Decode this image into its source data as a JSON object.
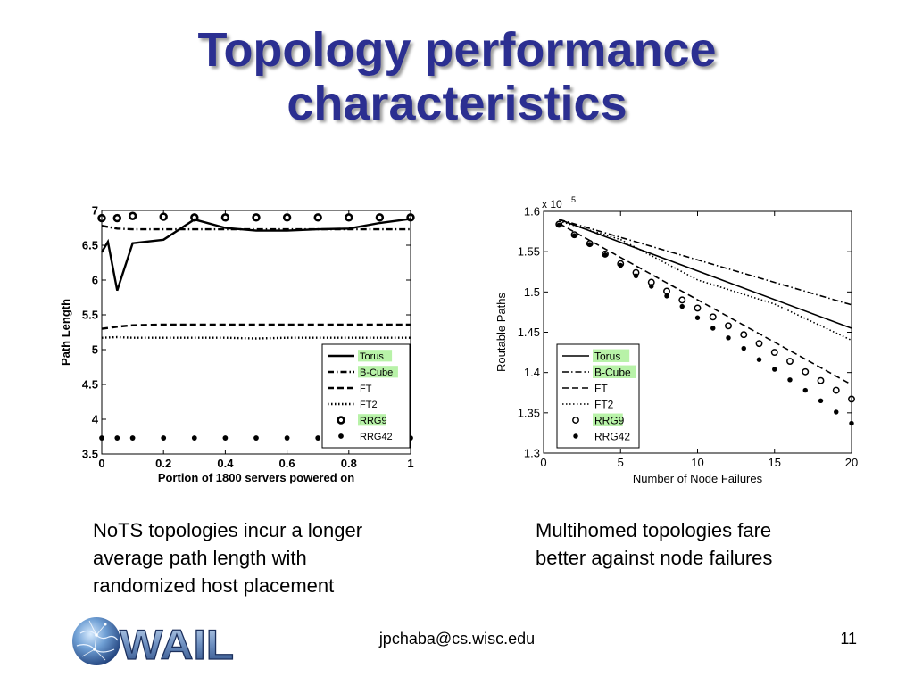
{
  "slide": {
    "title_lines": [
      "Topology performance",
      "characteristics"
    ],
    "caption_left_lines": [
      "NoTS topologies incur a longer",
      "average path length with",
      "randomized host placement"
    ],
    "caption_right_lines": [
      "Multihomed topologies fare",
      "better against node failures"
    ],
    "footer_email": "jpchaba@cs.wisc.edu",
    "page_number": "11",
    "logo_text": "WAIL",
    "logo_icon": "globe-icon",
    "title_color": "#2b2f91"
  },
  "chart_data": [
    {
      "type": "line",
      "title": "",
      "xlabel": "Portion of 1800 servers powered on",
      "ylabel": "Path Length",
      "xlim": [
        0,
        1
      ],
      "ylim": [
        3.5,
        7
      ],
      "xticks": [
        "0",
        "0.2",
        "0.4",
        "0.6",
        "0.8",
        "1"
      ],
      "yticks": [
        "3.5",
        "4",
        "4.5",
        "5",
        "5.5",
        "6",
        "6.5",
        "7"
      ],
      "grid": false,
      "legend_position": "bottom-right",
      "series": [
        {
          "name": "Torus",
          "style": "solid",
          "highlight": true,
          "x": [
            0,
            0.02,
            0.05,
            0.1,
            0.2,
            0.3,
            0.4,
            0.5,
            0.6,
            0.7,
            0.8,
            0.9,
            1.0
          ],
          "y": [
            6.4,
            6.55,
            5.85,
            6.53,
            6.58,
            6.87,
            6.75,
            6.71,
            6.71,
            6.73,
            6.74,
            6.82,
            6.88
          ]
        },
        {
          "name": "B-Cube",
          "style": "dashdot",
          "highlight": true,
          "x": [
            0,
            0.05,
            0.1,
            0.2,
            0.4,
            0.6,
            0.8,
            1.0
          ],
          "y": [
            6.78,
            6.74,
            6.73,
            6.73,
            6.73,
            6.73,
            6.73,
            6.73
          ]
        },
        {
          "name": "FT",
          "style": "dashed",
          "highlight": false,
          "x": [
            0,
            0.05,
            0.1,
            0.2,
            0.4,
            0.6,
            0.8,
            1.0
          ],
          "y": [
            5.3,
            5.33,
            5.35,
            5.36,
            5.36,
            5.36,
            5.36,
            5.36
          ]
        },
        {
          "name": "FT2",
          "style": "dotted",
          "highlight": false,
          "x": [
            0,
            0.05,
            0.1,
            0.2,
            0.4,
            0.5,
            0.6,
            0.8,
            1.0
          ],
          "y": [
            5.17,
            5.18,
            5.17,
            5.17,
            5.17,
            5.16,
            5.17,
            5.17,
            5.17
          ]
        },
        {
          "name": "RRG9",
          "style": "open-marker",
          "highlight": true,
          "x": [
            0,
            0.05,
            0.1,
            0.2,
            0.3,
            0.4,
            0.5,
            0.6,
            0.7,
            0.8,
            0.9,
            1.0
          ],
          "y": [
            6.89,
            6.89,
            6.92,
            6.91,
            6.9,
            6.9,
            6.9,
            6.9,
            6.9,
            6.9,
            6.9,
            6.9
          ]
        },
        {
          "name": "RRG42",
          "style": "filled-marker",
          "highlight": false,
          "x": [
            0,
            0.05,
            0.1,
            0.2,
            0.3,
            0.4,
            0.5,
            0.6,
            0.7,
            0.8,
            0.9,
            1.0
          ],
          "y": [
            3.73,
            3.73,
            3.73,
            3.73,
            3.73,
            3.73,
            3.73,
            3.73,
            3.73,
            3.73,
            3.73,
            3.73
          ]
        }
      ]
    },
    {
      "type": "line",
      "title": "",
      "xlabel": "Number of Node Failures",
      "ylabel": "Routable Paths",
      "y_multiplier": "x 10",
      "y_multiplier_exponent": "5",
      "xlim": [
        0,
        20
      ],
      "ylim": [
        1.3,
        1.6
      ],
      "xticks": [
        "0",
        "5",
        "10",
        "15",
        "20"
      ],
      "yticks": [
        "1.3",
        "1.35",
        "1.4",
        "1.45",
        "1.5",
        "1.55",
        "1.6"
      ],
      "grid": false,
      "legend_position": "bottom-left",
      "series": [
        {
          "name": "Torus",
          "style": "solid",
          "highlight": true,
          "x": [
            1,
            20
          ],
          "y": [
            1.59,
            1.455
          ]
        },
        {
          "name": "B-Cube",
          "style": "dashdot",
          "highlight": true,
          "x": [
            1,
            20
          ],
          "y": [
            1.59,
            1.484
          ]
        },
        {
          "name": "FT",
          "style": "dashed",
          "highlight": false,
          "x": [
            1,
            20
          ],
          "y": [
            1.585,
            1.385
          ]
        },
        {
          "name": "FT2",
          "style": "dotted",
          "highlight": false,
          "x": [
            1,
            5,
            10,
            15,
            20
          ],
          "y": [
            1.588,
            1.565,
            1.515,
            1.485,
            1.44
          ]
        },
        {
          "name": "RRG9",
          "style": "open-marker",
          "highlight": true,
          "x": [
            1,
            2,
            3,
            4,
            5,
            6,
            7,
            8,
            9,
            10,
            11,
            12,
            13,
            14,
            15,
            16,
            17,
            18,
            19,
            20
          ],
          "y": [
            1.584,
            1.571,
            1.56,
            1.547,
            1.535,
            1.524,
            1.512,
            1.501,
            1.49,
            1.48,
            1.469,
            1.458,
            1.447,
            1.436,
            1.425,
            1.414,
            1.401,
            1.39,
            1.378,
            1.367
          ]
        },
        {
          "name": "RRG42",
          "style": "filled-marker",
          "highlight": false,
          "x": [
            1,
            2,
            3,
            4,
            5,
            6,
            7,
            8,
            9,
            10,
            11,
            12,
            13,
            14,
            15,
            16,
            17,
            18,
            19,
            20
          ],
          "y": [
            1.583,
            1.57,
            1.559,
            1.546,
            1.533,
            1.52,
            1.507,
            1.495,
            1.482,
            1.468,
            1.455,
            1.443,
            1.43,
            1.416,
            1.404,
            1.391,
            1.378,
            1.365,
            1.351,
            1.337
          ]
        }
      ]
    }
  ]
}
